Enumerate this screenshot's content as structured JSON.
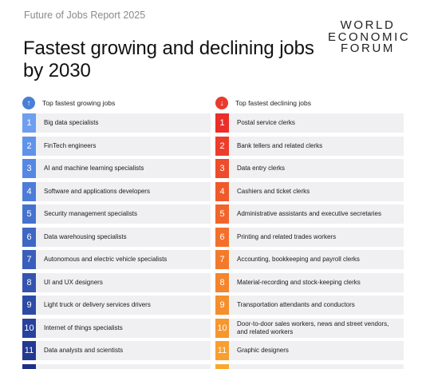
{
  "header": {
    "subtitle": "Future of Jobs Report 2025",
    "title": "Fastest growing and declining jobs by 2030"
  },
  "logo": {
    "line1": "WORLD",
    "line2": "ECONOMIC",
    "line3": "FORUM"
  },
  "growing": {
    "heading": "Top fastest growing jobs",
    "icon": "arrow-up-icon",
    "colors": [
      "#6d9eef",
      "#5f93ea",
      "#5687e2",
      "#4d7cd9",
      "#4672cf",
      "#3f68c4",
      "#395ebb",
      "#3354b0",
      "#2d4aa6",
      "#28419c",
      "#223891",
      "#1d2f87"
    ],
    "items": [
      {
        "num": "1",
        "label": "Big data specialists"
      },
      {
        "num": "2",
        "label": "FinTech engineers"
      },
      {
        "num": "3",
        "label": "AI and machine learning specialists"
      },
      {
        "num": "4",
        "label": "Software and applications developers"
      },
      {
        "num": "5",
        "label": "Security management specialists"
      },
      {
        "num": "6",
        "label": "Data warehousing specialists"
      },
      {
        "num": "7",
        "label": "Autonomous and electric vehicle specialists"
      },
      {
        "num": "8",
        "label": "UI and UX designers"
      },
      {
        "num": "9",
        "label": "Light truck or delivery services drivers"
      },
      {
        "num": "10",
        "label": "Internet of things specialists"
      },
      {
        "num": "11",
        "label": "Data analysts and scientists"
      }
    ]
  },
  "declining": {
    "heading": "Top fastest declining jobs",
    "icon": "arrow-down-icon",
    "colors": [
      "#ea2e2a",
      "#ec3d2a",
      "#ee4c2a",
      "#f0592a",
      "#f2652a",
      "#f3702b",
      "#f47a2b",
      "#f5842c",
      "#f68e2c",
      "#f7962d",
      "#f89f2e",
      "#f9a82f"
    ],
    "items": [
      {
        "num": "1",
        "label": "Postal service clerks"
      },
      {
        "num": "2",
        "label": "Bank tellers and related clerks"
      },
      {
        "num": "3",
        "label": "Data entry clerks"
      },
      {
        "num": "4",
        "label": "Cashiers and ticket clerks"
      },
      {
        "num": "5",
        "label": "Administrative assistants and executive secretaries"
      },
      {
        "num": "6",
        "label": "Printing and related trades workers"
      },
      {
        "num": "7",
        "label": "Accounting, bookkeeping and payroll clerks"
      },
      {
        "num": "8",
        "label": "Material-recording and stock-keeping clerks"
      },
      {
        "num": "9",
        "label": "Transportation attendants and conductors"
      },
      {
        "num": "10",
        "label": "Door-to-door sales workers, news and street vendors, and related workers"
      },
      {
        "num": "11",
        "label": "Graphic designers"
      }
    ]
  }
}
